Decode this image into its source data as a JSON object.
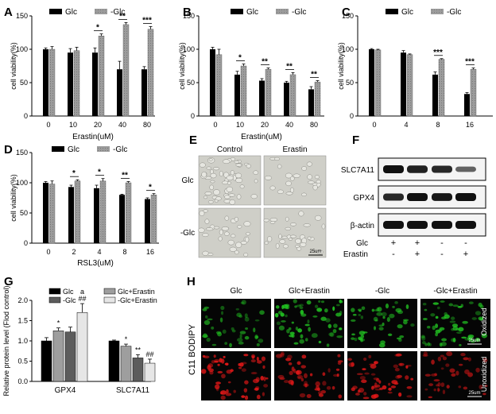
{
  "figure": {
    "legend_glc": "Glc",
    "legend_minus_glc": "-Glc"
  },
  "chart_data": [
    {
      "panel": "A",
      "type": "bar",
      "ylabel": "cell viability(%)",
      "xlabel": "Erastin(uM)",
      "ylim": [
        0,
        150
      ],
      "yticks": [
        "0",
        "50",
        "100",
        "150"
      ],
      "categories": [
        "0",
        "10",
        "20",
        "40",
        "80"
      ],
      "series": [
        {
          "name": "Glc",
          "values": [
            100,
            95,
            95,
            70,
            70
          ],
          "errors": [
            2,
            6,
            7,
            12,
            4
          ]
        },
        {
          "name": "-Glc",
          "values": [
            100,
            98,
            120,
            137,
            130
          ],
          "errors": [
            4,
            5,
            3,
            3,
            4
          ]
        }
      ],
      "significance": [
        "",
        "",
        "*",
        "**",
        "***"
      ]
    },
    {
      "panel": "B",
      "type": "bar",
      "ylabel": "cell viability(%)",
      "xlabel": "Erastin(uM)",
      "ylim": [
        0,
        150
      ],
      "yticks": [
        "0",
        "50",
        "100",
        "150"
      ],
      "categories": [
        "0",
        "10",
        "20",
        "40",
        "80"
      ],
      "series": [
        {
          "name": "Glc",
          "values": [
            100,
            62,
            53,
            50,
            40
          ],
          "errors": [
            3,
            5,
            3,
            2,
            4
          ]
        },
        {
          "name": "-Glc",
          "values": [
            92,
            75,
            70,
            62,
            51
          ],
          "errors": [
            8,
            3,
            2,
            3,
            2
          ]
        }
      ],
      "significance": [
        "",
        "*",
        "**",
        "**",
        "**"
      ]
    },
    {
      "panel": "C",
      "type": "bar",
      "ylabel": "cell viability(%)",
      "xlabel": "",
      "ylim": [
        0,
        150
      ],
      "yticks": [
        "0",
        "50",
        "100",
        "150"
      ],
      "categories": [
        "0",
        "4",
        "8",
        "16"
      ],
      "series": [
        {
          "name": "Glc",
          "values": [
            100,
            95,
            62,
            33
          ],
          "errors": [
            1,
            3,
            4,
            2
          ]
        },
        {
          "name": "-Glc",
          "values": [
            99,
            92,
            85,
            70
          ],
          "errors": [
            1,
            1,
            1,
            2
          ]
        }
      ],
      "significance": [
        "",
        "",
        "***",
        "***"
      ]
    },
    {
      "panel": "D",
      "type": "bar",
      "ylabel": "cell viability(%)",
      "xlabel": "RSL3(uM)",
      "ylim": [
        0,
        150
      ],
      "yticks": [
        "0",
        "50",
        "100",
        "150"
      ],
      "categories": [
        "0",
        "2",
        "4",
        "8",
        "16"
      ],
      "series": [
        {
          "name": "Glc",
          "values": [
            100,
            93,
            91,
            80,
            73
          ],
          "errors": [
            2,
            3,
            5,
            1,
            2
          ]
        },
        {
          "name": "-Glc",
          "values": [
            98,
            103,
            103,
            100,
            80
          ],
          "errors": [
            5,
            2,
            4,
            2,
            2
          ]
        }
      ],
      "significance": [
        "",
        "*",
        "*",
        "**",
        "*"
      ]
    },
    {
      "panel": "G",
      "type": "bar",
      "ylabel": "Relative protein level (Flod control)",
      "xlabel": "",
      "ylim": [
        0,
        2.0
      ],
      "yticks": [
        "0.0",
        "0.5",
        "1.0",
        "1.5",
        "2.0"
      ],
      "categories": [
        "GPX4",
        "SLC7A11"
      ],
      "series": [
        {
          "name": "Glc",
          "values": [
            1.0,
            1.0
          ],
          "errors": [
            0.08,
            0.02
          ]
        },
        {
          "name": "Glc+Erastin",
          "values": [
            1.25,
            0.87
          ],
          "errors": [
            0.07,
            0.05
          ]
        },
        {
          "name": "-Glc",
          "values": [
            1.22,
            0.58
          ],
          "errors": [
            0.12,
            0.08
          ]
        },
        {
          "name": "-Glc+Erastin",
          "values": [
            1.7,
            0.45
          ],
          "errors": [
            0.22,
            0.1
          ]
        }
      ],
      "significance": [
        [
          "",
          "*",
          "",
          "##"
        ],
        [
          "",
          "*",
          "**",
          "##"
        ]
      ],
      "extra_marks": [
        [
          "",
          "",
          "",
          "a"
        ],
        [
          "",
          "",
          "",
          ""
        ]
      ]
    }
  ],
  "panel_e": {
    "letter": "E",
    "col_labels": [
      "Control",
      "Erastin"
    ],
    "row_labels": [
      "Glc",
      "-Glc"
    ],
    "scale_label": "25um"
  },
  "panel_f": {
    "letter": "F",
    "bands": [
      "SLC7A11",
      "GPX4",
      "β-actin"
    ],
    "band_intensity": [
      [
        1.0,
        0.9,
        0.85,
        0.45
      ],
      [
        0.85,
        1.0,
        0.95,
        1.0
      ],
      [
        1.0,
        1.0,
        1.0,
        1.0
      ]
    ],
    "conditions": [
      {
        "label": "Glc",
        "marks": [
          "+",
          "+",
          "-",
          "-"
        ]
      },
      {
        "label": "Erastin",
        "marks": [
          "-",
          "+",
          "-",
          "+"
        ]
      }
    ]
  },
  "panel_h": {
    "letter": "H",
    "col_labels": [
      "Glc",
      "Glc+Erastin",
      "-Glc",
      "-Glc+Erastin"
    ],
    "title": "C11 BODIPY",
    "row_labels": [
      "Oxidized",
      "Unoxidized"
    ],
    "scale_label": "25um",
    "oxidized_intensity": [
      0.55,
      1.0,
      0.75,
      0.95
    ],
    "unoxidized_intensity": [
      1.0,
      0.75,
      0.9,
      0.55
    ],
    "oxidized_color": "#22c322",
    "unoxidized_color": "#e01818"
  }
}
